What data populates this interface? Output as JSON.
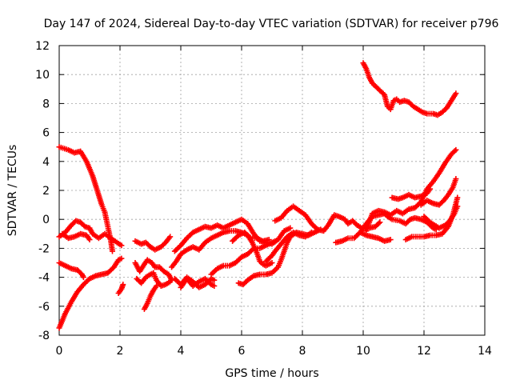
{
  "chart_data": {
    "type": "scatter",
    "title": "Day 147 of 2024, Sidereal Day-to-day VTEC variation (SDTVAR) for receiver p796",
    "xlabel": "GPS time / hours",
    "ylabel": "SDTVAR / TECUs",
    "xlim": [
      0,
      14
    ],
    "ylim": [
      -8,
      12
    ],
    "xticks": [
      "0",
      "2",
      "4",
      "6",
      "8",
      "10",
      "12",
      "14"
    ],
    "yticks": [
      "-8",
      "-6",
      "-4",
      "-2",
      "0",
      "2",
      "4",
      "6",
      "8",
      "10",
      "12"
    ],
    "grid": true,
    "marker": "plus",
    "color": "#ff0000",
    "series": [
      {
        "values": [
          [
            0.0,
            5.0
          ],
          [
            0.3,
            4.8
          ],
          [
            0.5,
            4.6
          ],
          [
            0.7,
            4.7
          ],
          [
            0.9,
            4.0
          ],
          [
            1.1,
            3.0
          ],
          [
            1.25,
            2.0
          ],
          [
            1.4,
            1.0
          ],
          [
            1.5,
            0.5
          ],
          [
            1.6,
            -0.5
          ],
          [
            1.7,
            -1.5
          ],
          [
            1.75,
            -2.2
          ]
        ]
      },
      {
        "values": [
          [
            0.0,
            -7.5
          ],
          [
            0.2,
            -6.5
          ],
          [
            0.4,
            -5.7
          ],
          [
            0.6,
            -5.0
          ],
          [
            0.8,
            -4.5
          ],
          [
            1.0,
            -4.1
          ],
          [
            1.2,
            -3.9
          ],
          [
            1.4,
            -3.8
          ],
          [
            1.6,
            -3.7
          ],
          [
            1.8,
            -3.3
          ],
          [
            1.95,
            -2.8
          ],
          [
            2.05,
            -2.7
          ]
        ]
      },
      {
        "values": [
          [
            0.0,
            -3.0
          ],
          [
            0.2,
            -3.2
          ],
          [
            0.4,
            -3.4
          ],
          [
            0.6,
            -3.5
          ],
          [
            0.75,
            -3.8
          ],
          [
            0.8,
            -4.0
          ]
        ]
      },
      {
        "values": [
          [
            0.0,
            -1.2
          ],
          [
            0.2,
            -0.9
          ],
          [
            0.4,
            -0.4
          ],
          [
            0.55,
            -0.1
          ],
          [
            0.7,
            -0.2
          ],
          [
            0.85,
            -0.5
          ],
          [
            1.0,
            -0.6
          ],
          [
            1.1,
            -1.0
          ],
          [
            1.3,
            -1.3
          ],
          [
            1.5,
            -1.0
          ],
          [
            1.7,
            -1.3
          ],
          [
            1.9,
            -1.6
          ],
          [
            2.05,
            -1.8
          ]
        ]
      },
      {
        "values": [
          [
            0.1,
            -1.0
          ],
          [
            0.3,
            -1.3
          ],
          [
            0.5,
            -1.2
          ],
          [
            0.7,
            -1.0
          ],
          [
            0.9,
            -1.1
          ],
          [
            1.0,
            -1.4
          ]
        ]
      },
      {
        "values": [
          [
            1.95,
            -5.1
          ],
          [
            2.05,
            -4.8
          ],
          [
            2.1,
            -4.5
          ]
        ]
      },
      {
        "values": [
          [
            2.5,
            -1.5
          ],
          [
            2.7,
            -1.7
          ],
          [
            2.85,
            -1.6
          ],
          [
            3.0,
            -1.9
          ],
          [
            3.15,
            -2.1
          ],
          [
            3.35,
            -1.9
          ],
          [
            3.5,
            -1.6
          ],
          [
            3.65,
            -1.2
          ]
        ]
      },
      {
        "values": [
          [
            2.5,
            -3.0
          ],
          [
            2.65,
            -3.6
          ],
          [
            2.8,
            -3.1
          ],
          [
            2.9,
            -2.8
          ],
          [
            3.05,
            -3.0
          ],
          [
            3.15,
            -3.3
          ],
          [
            3.3,
            -3.3
          ],
          [
            3.45,
            -3.6
          ],
          [
            3.6,
            -3.8
          ],
          [
            3.7,
            -4.2
          ]
        ]
      },
      {
        "values": [
          [
            2.55,
            -4.1
          ],
          [
            2.7,
            -4.4
          ],
          [
            2.85,
            -4.0
          ],
          [
            3.0,
            -3.8
          ],
          [
            3.1,
            -3.7
          ],
          [
            3.2,
            -4.2
          ],
          [
            3.35,
            -4.6
          ],
          [
            3.5,
            -4.5
          ],
          [
            3.65,
            -4.3
          ]
        ]
      },
      {
        "values": [
          [
            2.8,
            -6.2
          ],
          [
            2.9,
            -5.8
          ],
          [
            3.0,
            -5.3
          ],
          [
            3.1,
            -4.9
          ],
          [
            3.2,
            -4.6
          ]
        ]
      },
      {
        "values": [
          [
            3.7,
            -3.3
          ],
          [
            3.85,
            -2.9
          ],
          [
            4.0,
            -2.4
          ],
          [
            4.2,
            -2.1
          ],
          [
            4.4,
            -1.9
          ],
          [
            4.6,
            -2.1
          ],
          [
            4.8,
            -1.6
          ],
          [
            5.0,
            -1.3
          ],
          [
            5.2,
            -1.1
          ],
          [
            5.4,
            -0.9
          ],
          [
            5.6,
            -0.8
          ],
          [
            5.8,
            -0.8
          ],
          [
            6.0,
            -0.9
          ],
          [
            6.2,
            -1.1
          ],
          [
            6.35,
            -1.6
          ],
          [
            6.5,
            -2.3
          ],
          [
            6.6,
            -2.9
          ],
          [
            6.7,
            -3.1
          ],
          [
            6.8,
            -3.2
          ],
          [
            6.9,
            -3.1
          ],
          [
            7.0,
            -3.0
          ]
        ]
      },
      {
        "values": [
          [
            3.8,
            -2.2
          ],
          [
            4.0,
            -1.8
          ],
          [
            4.2,
            -1.3
          ],
          [
            4.4,
            -0.9
          ],
          [
            4.6,
            -0.7
          ],
          [
            4.8,
            -0.5
          ],
          [
            5.0,
            -0.6
          ],
          [
            5.2,
            -0.4
          ],
          [
            5.4,
            -0.6
          ],
          [
            5.6,
            -0.4
          ],
          [
            5.8,
            -0.2
          ],
          [
            6.0,
            0.0
          ],
          [
            6.2,
            -0.3
          ],
          [
            6.4,
            -1.0
          ],
          [
            6.6,
            -1.5
          ],
          [
            6.8,
            -1.6
          ],
          [
            7.0,
            -1.7
          ],
          [
            7.2,
            -1.4
          ],
          [
            7.4,
            -0.8
          ],
          [
            7.6,
            -0.6
          ]
        ]
      },
      {
        "values": [
          [
            3.8,
            -4.1
          ],
          [
            4.0,
            -4.5
          ],
          [
            4.2,
            -4.0
          ],
          [
            4.4,
            -4.3
          ],
          [
            4.6,
            -4.7
          ],
          [
            4.8,
            -4.5
          ],
          [
            5.0,
            -4.1
          ],
          [
            5.1,
            -4.2
          ]
        ]
      },
      {
        "values": [
          [
            4.0,
            -4.7
          ],
          [
            4.2,
            -4.1
          ],
          [
            4.4,
            -4.6
          ],
          [
            4.6,
            -4.3
          ],
          [
            4.8,
            -4.1
          ],
          [
            5.0,
            -4.5
          ],
          [
            5.1,
            -4.6
          ]
        ]
      },
      {
        "values": [
          [
            5.0,
            -3.8
          ],
          [
            5.1,
            -3.6
          ],
          [
            5.2,
            -3.4
          ],
          [
            5.4,
            -3.2
          ],
          [
            5.6,
            -3.2
          ],
          [
            5.8,
            -3.0
          ],
          [
            6.0,
            -2.6
          ],
          [
            6.2,
            -2.4
          ],
          [
            6.4,
            -2.0
          ],
          [
            6.6,
            -2.0
          ],
          [
            6.8,
            -1.8
          ],
          [
            7.0,
            -1.6
          ],
          [
            7.1,
            -1.5
          ]
        ]
      },
      {
        "values": [
          [
            5.7,
            -1.5
          ],
          [
            5.9,
            -1.1
          ],
          [
            6.1,
            -0.9
          ],
          [
            6.3,
            -1.3
          ],
          [
            6.5,
            -1.3
          ],
          [
            6.7,
            -1.5
          ],
          [
            6.9,
            -1.4
          ]
        ]
      },
      {
        "values": [
          [
            5.9,
            -4.4
          ],
          [
            6.05,
            -4.5
          ],
          [
            6.2,
            -4.2
          ],
          [
            6.4,
            -3.9
          ],
          [
            6.6,
            -3.8
          ],
          [
            6.8,
            -3.8
          ],
          [
            7.0,
            -3.7
          ],
          [
            7.1,
            -3.5
          ],
          [
            7.2,
            -3.3
          ],
          [
            7.3,
            -2.8
          ],
          [
            7.4,
            -2.2
          ],
          [
            7.5,
            -1.6
          ],
          [
            7.6,
            -1.2
          ],
          [
            7.8,
            -0.9
          ],
          [
            8.0,
            -1.0
          ],
          [
            8.2,
            -1.1
          ],
          [
            8.4,
            -0.9
          ],
          [
            8.6,
            -0.7
          ]
        ]
      },
      {
        "values": [
          [
            6.8,
            -2.9
          ],
          [
            7.0,
            -2.5
          ],
          [
            7.1,
            -2.2
          ],
          [
            7.3,
            -1.7
          ],
          [
            7.5,
            -1.2
          ],
          [
            7.7,
            -0.9
          ],
          [
            7.9,
            -1.1
          ],
          [
            8.1,
            -1.2
          ],
          [
            8.3,
            -0.9
          ]
        ]
      },
      {
        "values": [
          [
            7.1,
            -0.1
          ],
          [
            7.3,
            0.1
          ],
          [
            7.5,
            0.6
          ],
          [
            7.7,
            0.9
          ],
          [
            7.9,
            0.6
          ],
          [
            8.1,
            0.3
          ],
          [
            8.3,
            -0.3
          ],
          [
            8.5,
            -0.7
          ],
          [
            8.7,
            -0.8
          ],
          [
            8.85,
            -0.4
          ],
          [
            9.05,
            0.3
          ],
          [
            9.2,
            0.2
          ],
          [
            9.4,
            0.0
          ],
          [
            9.5,
            -0.3
          ],
          [
            9.65,
            -0.1
          ],
          [
            9.8,
            -0.4
          ],
          [
            9.95,
            -0.6
          ],
          [
            10.2,
            -0.6
          ],
          [
            10.4,
            -0.5
          ],
          [
            10.55,
            -0.2
          ]
        ]
      },
      {
        "values": [
          [
            9.1,
            -1.6
          ],
          [
            9.3,
            -1.5
          ],
          [
            9.5,
            -1.3
          ],
          [
            9.7,
            -1.3
          ],
          [
            9.9,
            -0.9
          ],
          [
            10.1,
            -1.1
          ],
          [
            10.3,
            -1.2
          ],
          [
            10.5,
            -1.3
          ],
          [
            10.7,
            -1.5
          ],
          [
            10.9,
            -1.4
          ]
        ]
      },
      {
        "values": [
          [
            9.9,
            -0.9
          ],
          [
            10.1,
            -0.3
          ],
          [
            10.3,
            0.2
          ],
          [
            10.5,
            0.3
          ],
          [
            10.7,
            0.4
          ],
          [
            10.8,
            0.2
          ],
          [
            10.95,
            0.0
          ],
          [
            11.2,
            -0.1
          ],
          [
            11.4,
            -0.3
          ],
          [
            11.55,
            0.0
          ],
          [
            11.7,
            0.1
          ],
          [
            11.9,
            0.0
          ],
          [
            12.1,
            -0.2
          ],
          [
            12.3,
            -0.6
          ],
          [
            12.4,
            -0.7
          ]
        ]
      },
      {
        "values": [
          [
            10.0,
            10.8
          ],
          [
            10.1,
            10.4
          ],
          [
            10.2,
            9.8
          ],
          [
            10.3,
            9.4
          ],
          [
            10.4,
            9.2
          ],
          [
            10.55,
            8.9
          ],
          [
            10.7,
            8.6
          ],
          [
            10.8,
            7.8
          ],
          [
            10.9,
            7.6
          ],
          [
            11.0,
            8.2
          ],
          [
            11.1,
            8.3
          ],
          [
            11.2,
            8.1
          ],
          [
            11.35,
            8.2
          ],
          [
            11.5,
            8.1
          ],
          [
            11.65,
            7.8
          ],
          [
            11.8,
            7.6
          ],
          [
            11.95,
            7.4
          ],
          [
            12.1,
            7.3
          ],
          [
            12.3,
            7.3
          ],
          [
            12.45,
            7.2
          ],
          [
            12.6,
            7.4
          ],
          [
            12.75,
            7.7
          ],
          [
            12.9,
            8.2
          ],
          [
            13.05,
            8.7
          ]
        ]
      },
      {
        "values": [
          [
            10.1,
            -0.8
          ],
          [
            10.3,
            0.4
          ],
          [
            10.5,
            0.6
          ],
          [
            10.7,
            0.5
          ],
          [
            10.9,
            0.3
          ],
          [
            11.1,
            0.6
          ],
          [
            11.3,
            0.4
          ],
          [
            11.5,
            0.7
          ],
          [
            11.7,
            0.8
          ],
          [
            11.9,
            1.2
          ],
          [
            12.1,
            2.1
          ],
          [
            12.3,
            2.6
          ],
          [
            12.5,
            3.2
          ],
          [
            12.7,
            3.9
          ],
          [
            12.9,
            4.5
          ],
          [
            13.05,
            4.8
          ]
        ]
      },
      {
        "values": [
          [
            10.95,
            1.5
          ],
          [
            11.15,
            1.4
          ],
          [
            11.3,
            1.5
          ],
          [
            11.5,
            1.7
          ],
          [
            11.7,
            1.5
          ],
          [
            11.9,
            1.6
          ],
          [
            12.1,
            1.8
          ],
          [
            12.2,
            2.1
          ]
        ]
      },
      {
        "values": [
          [
            11.4,
            -1.4
          ],
          [
            11.6,
            -1.2
          ],
          [
            11.8,
            -1.2
          ],
          [
            12.0,
            -1.2
          ],
          [
            12.2,
            -1.1
          ],
          [
            12.4,
            -1.1
          ],
          [
            12.6,
            -1.0
          ],
          [
            12.8,
            -0.5
          ],
          [
            12.95,
            0.3
          ],
          [
            13.1,
            1.5
          ]
        ]
      },
      {
        "values": [
          [
            11.9,
            1.0
          ],
          [
            12.1,
            1.3
          ],
          [
            12.3,
            1.1
          ],
          [
            12.5,
            1.0
          ],
          [
            12.65,
            1.3
          ],
          [
            12.8,
            1.7
          ],
          [
            12.95,
            2.2
          ],
          [
            13.05,
            2.8
          ]
        ]
      },
      {
        "values": [
          [
            12.0,
            0.2
          ],
          [
            12.2,
            -0.2
          ],
          [
            12.35,
            -0.4
          ],
          [
            12.5,
            -0.6
          ],
          [
            12.7,
            -0.4
          ],
          [
            12.85,
            -0.1
          ],
          [
            13.0,
            0.4
          ],
          [
            13.1,
            0.9
          ]
        ]
      }
    ]
  }
}
